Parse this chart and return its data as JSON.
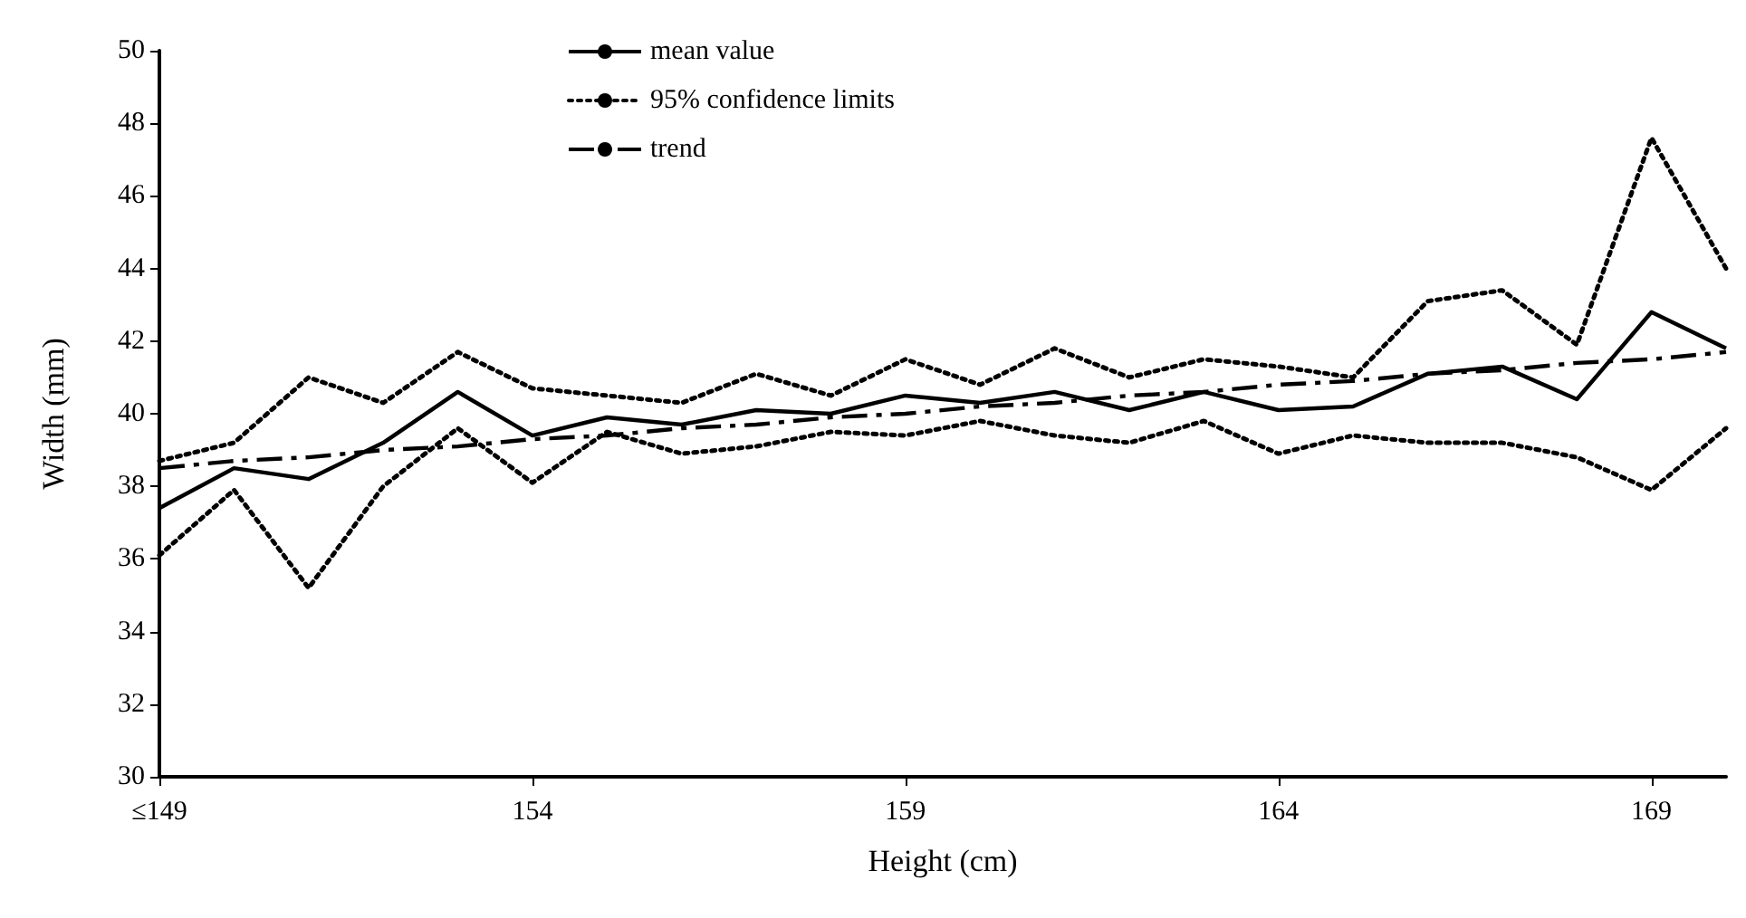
{
  "chart_data": {
    "type": "line",
    "xlabel": "Height (cm)",
    "ylabel": "Width (mm)",
    "categories": [
      "≤149",
      null,
      null,
      null,
      null,
      "154",
      null,
      null,
      null,
      null,
      "159",
      null,
      null,
      null,
      null,
      "164",
      null,
      null,
      null,
      null,
      "169",
      null
    ],
    "series": [
      {
        "name": "mean value",
        "color": "#000000",
        "line_style": "solid",
        "values": [
          37.4,
          38.5,
          38.2,
          39.2,
          40.6,
          39.4,
          39.9,
          39.7,
          40.1,
          40.0,
          40.5,
          40.3,
          40.6,
          40.1,
          40.6,
          40.1,
          40.2,
          41.1,
          41.3,
          40.4,
          42.8,
          41.8
        ]
      },
      {
        "name": "95% confidence limits",
        "color": "#000000",
        "line_style": "dotted",
        "values": [
          38.7,
          39.2,
          41.0,
          40.3,
          41.7,
          40.7,
          40.5,
          40.3,
          41.1,
          40.5,
          41.5,
          40.8,
          41.8,
          41.0,
          41.5,
          41.3,
          41.0,
          43.1,
          43.4,
          41.9,
          47.6,
          44.0
        ]
      },
      {
        "color": "#000000",
        "line_style": "dotted",
        "values": [
          36.1,
          37.9,
          35.2,
          38.0,
          39.6,
          38.1,
          39.5,
          38.9,
          39.1,
          39.5,
          39.4,
          39.8,
          39.4,
          39.2,
          39.8,
          38.9,
          39.4,
          39.2,
          39.2,
          38.8,
          37.9,
          39.6
        ]
      },
      {
        "name": "trend",
        "color": "#000000",
        "line_style": "dashdot",
        "values": [
          38.5,
          38.7,
          38.8,
          39.0,
          39.1,
          39.3,
          39.4,
          39.6,
          39.7,
          39.9,
          40.0,
          40.2,
          40.3,
          40.5,
          40.6,
          40.8,
          40.9,
          41.1,
          41.2,
          41.4,
          41.5,
          41.7
        ]
      }
    ],
    "ylim": [
      30,
      50
    ],
    "yticks": [
      30,
      32,
      34,
      36,
      38,
      40,
      42,
      44,
      46,
      48,
      50
    ],
    "grid": false,
    "legend": "top",
    "marker": "none"
  }
}
